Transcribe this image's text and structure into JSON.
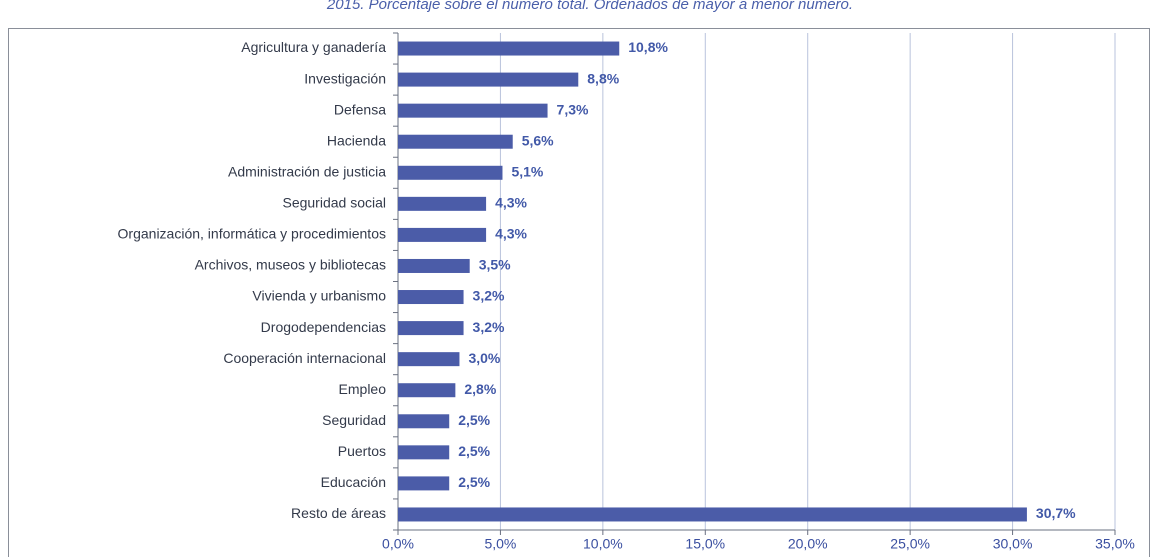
{
  "chart_data": {
    "type": "bar",
    "orientation": "horizontal",
    "title": "2015. Porcentaje sobre el número total. Ordenados de mayor a menor número.",
    "categories": [
      "Agricultura y ganadería",
      "Investigación",
      "Defensa",
      "Hacienda",
      "Administración de justicia",
      "Seguridad social",
      "Organización, informática y procedimientos",
      "Archivos, museos y bibliotecas",
      "Vivienda y urbanismo",
      "Drogodependencias",
      "Cooperación internacional",
      "Empleo",
      "Seguridad",
      "Puertos",
      "Educación",
      "Resto de áreas"
    ],
    "values": [
      10.8,
      8.8,
      7.3,
      5.6,
      5.1,
      4.3,
      4.3,
      3.5,
      3.2,
      3.2,
      3.0,
      2.8,
      2.5,
      2.5,
      2.5,
      30.7
    ],
    "value_labels": [
      "10,8%",
      "8,8%",
      "7,3%",
      "5,6%",
      "5,1%",
      "4,3%",
      "4,3%",
      "3,5%",
      "3,2%",
      "3,2%",
      "3,0%",
      "2,8%",
      "2,5%",
      "2,5%",
      "2,5%",
      "30,7%"
    ],
    "color": "#4b5ca8",
    "xlim": [
      0,
      35
    ],
    "xticks": [
      {
        "value": 0,
        "label": "0,0%"
      },
      {
        "value": 5,
        "label": "5,0%"
      },
      {
        "value": 10,
        "label": "10,0%"
      },
      {
        "value": 15,
        "label": "15,0%"
      },
      {
        "value": 20,
        "label": "20,0%"
      },
      {
        "value": 25,
        "label": "25,0%"
      },
      {
        "value": 30,
        "label": "30,0%"
      },
      {
        "value": 35,
        "label": "35,0%"
      }
    ],
    "grid": true
  }
}
